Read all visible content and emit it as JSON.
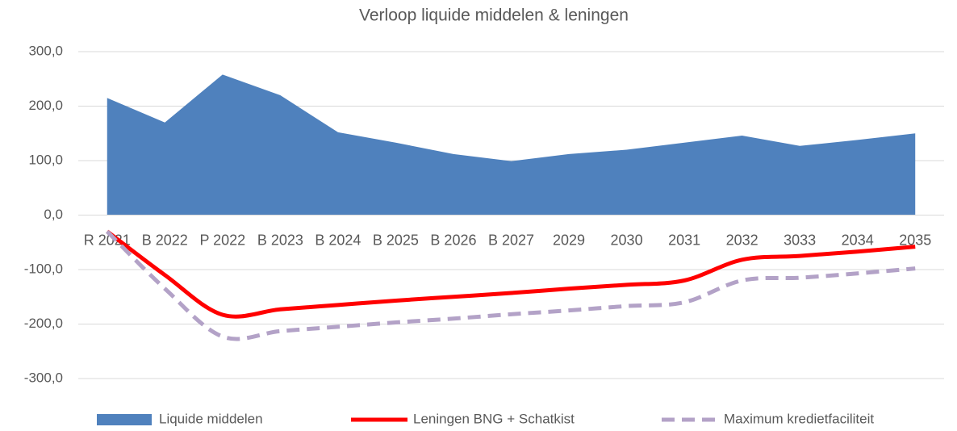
{
  "chart_data": {
    "type": "combo",
    "title": "Verloop liquide middelen & leningen",
    "categories": [
      "R 2021",
      "B 2022",
      "P 2022",
      "B 2023",
      "B 2024",
      "B 2025",
      "B 2026",
      "B 2027",
      "2029",
      "2030",
      "2031",
      "2032",
      "3033",
      "2034",
      "2035"
    ],
    "series": [
      {
        "name": "Liquide middelen",
        "type": "area",
        "color": "#4f81bd",
        "values": [
          215,
          170,
          258,
          220,
          152,
          133,
          112,
          99,
          112,
          120,
          133,
          146,
          127,
          138,
          150
        ]
      },
      {
        "name": "Leningen BNG + Schatkist",
        "type": "line",
        "smooth": true,
        "color": "#ff0000",
        "values": [
          -30,
          -110,
          -183,
          -173,
          -165,
          -157,
          -150,
          -143,
          -135,
          -128,
          -120,
          -82,
          -75,
          -67,
          -58
        ]
      },
      {
        "name": "Maximum kredietfaciliteit",
        "type": "line",
        "smooth": true,
        "dash": true,
        "color": "#b3a2c7",
        "values": [
          -30,
          -135,
          -223,
          -213,
          -205,
          -197,
          -190,
          -182,
          -175,
          -167,
          -160,
          -120,
          -115,
          -107,
          -98
        ]
      }
    ],
    "ylim": [
      -300,
      300
    ],
    "yticks": [
      {
        "value": -300,
        "label": "-300,0"
      },
      {
        "value": -200,
        "label": "-200,0"
      },
      {
        "value": -100,
        "label": "-100,0"
      },
      {
        "value": 0,
        "label": "0,0"
      },
      {
        "value": 100,
        "label": "100,0"
      },
      {
        "value": 200,
        "label": "200,0"
      },
      {
        "value": 300,
        "label": "300,0"
      }
    ],
    "grid": true,
    "legend": "bottom"
  }
}
